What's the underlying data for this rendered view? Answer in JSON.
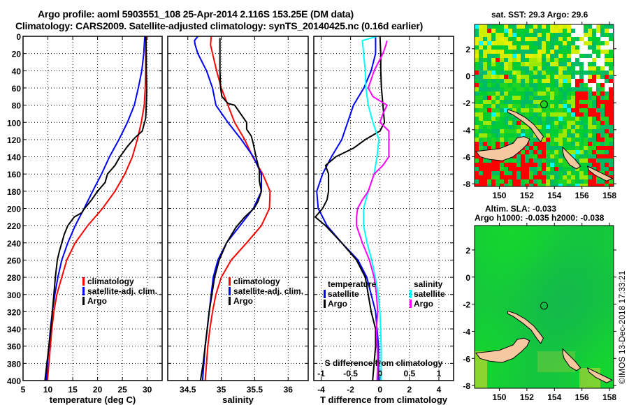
{
  "titles": {
    "line1": "Argo profile: aoml 5903551_108 25-Apr-2014 2.116S 153.25E (DM data)",
    "line2": "Climatology: CARS2009. Satellite-adjusted climatology: synTS_20140425.nc (0.16d earlier)"
  },
  "credit": "©IMOS 13-Dec-2018 17:33:21",
  "chart_data": [
    {
      "type": "line",
      "id": "temperature",
      "xlabel": "temperature (deg C)",
      "ylabel": "depth",
      "xlim": [
        5,
        33
      ],
      "ylim": [
        400,
        0
      ],
      "xticks": [
        5,
        10,
        15,
        20,
        25,
        30
      ],
      "yticks": [
        0,
        20,
        40,
        60,
        80,
        100,
        120,
        140,
        160,
        180,
        200,
        220,
        240,
        260,
        280,
        300,
        320,
        340,
        360,
        380,
        400
      ],
      "grid": true,
      "legend": {
        "placement": "lower-right",
        "entries": [
          "climatology",
          "satellite-adj. clim.",
          "Argo"
        ]
      },
      "series": [
        {
          "name": "climatology",
          "color": "#ff0000",
          "depth": [
            0,
            20,
            40,
            60,
            80,
            100,
            120,
            140,
            160,
            180,
            200,
            220,
            240,
            260,
            280,
            300,
            320,
            340,
            360,
            380,
            400
          ],
          "values": [
            29.8,
            29.7,
            29.7,
            29.6,
            29.4,
            28.8,
            28.0,
            27.0,
            25.5,
            23.5,
            21.0,
            18.0,
            15.5,
            13.8,
            12.8,
            11.8,
            11.2,
            10.8,
            10.5,
            10.2,
            9.9
          ]
        },
        {
          "name": "satellite-adj. clim.",
          "color": "#0000ff",
          "depth": [
            0,
            20,
            40,
            60,
            80,
            100,
            120,
            140,
            160,
            180,
            200,
            220,
            240,
            260,
            280,
            300,
            320,
            340,
            360,
            380,
            400
          ],
          "values": [
            29.5,
            29.3,
            28.9,
            28.2,
            27.4,
            26.0,
            24.3,
            22.4,
            20.8,
            19.0,
            17.3,
            15.5,
            14.0,
            12.8,
            12.0,
            11.4,
            10.9,
            10.5,
            10.2,
            9.9,
            9.7
          ]
        },
        {
          "name": "Argo",
          "color": "#000000",
          "depth": [
            0,
            20,
            40,
            60,
            80,
            95,
            110,
            118,
            128,
            140,
            150,
            160,
            170,
            180,
            190,
            200,
            205,
            210,
            220,
            230,
            240,
            250,
            260,
            280,
            300,
            320,
            340,
            360,
            380,
            400
          ],
          "values": [
            29.7,
            29.8,
            29.8,
            29.9,
            29.8,
            29.7,
            29.0,
            27.5,
            26.0,
            24.5,
            23.5,
            22.0,
            21.5,
            20.0,
            18.8,
            17.4,
            16.8,
            15.3,
            14.0,
            13.3,
            12.8,
            12.3,
            11.9,
            11.5,
            11.2,
            10.9,
            10.6,
            10.2,
            9.8,
            9.4
          ]
        }
      ]
    },
    {
      "type": "line",
      "id": "salinity",
      "xlabel": "salinity",
      "xlim": [
        34.2,
        36.3
      ],
      "ylim": [
        400,
        0
      ],
      "xticks": [
        34.5,
        35,
        35.5,
        36
      ],
      "yticks": [
        0,
        20,
        40,
        60,
        80,
        100,
        120,
        140,
        160,
        180,
        200,
        220,
        240,
        260,
        280,
        300,
        320,
        340,
        360,
        380,
        400
      ],
      "grid": true,
      "legend": {
        "placement": "lower-right",
        "entries": [
          "climatology",
          "satellite-adj. clim.",
          "Argo"
        ]
      },
      "series": [
        {
          "name": "climatology",
          "color": "#ff0000",
          "depth": [
            0,
            10,
            20,
            40,
            60,
            80,
            100,
            120,
            140,
            160,
            180,
            200,
            220,
            240,
            260,
            280,
            300,
            320,
            340,
            360,
            380,
            400
          ],
          "values": [
            34.85,
            34.84,
            34.87,
            34.93,
            35.0,
            35.1,
            35.2,
            35.35,
            35.47,
            35.62,
            35.73,
            35.72,
            35.6,
            35.38,
            35.15,
            35.0,
            34.92,
            34.87,
            34.83,
            34.8,
            34.78,
            34.76
          ]
        },
        {
          "name": "satellite-adj. clim.",
          "color": "#0000ff",
          "depth": [
            0,
            5,
            10,
            20,
            40,
            60,
            80,
            100,
            120,
            140,
            160,
            180,
            200,
            220,
            240,
            260,
            280,
            300,
            320,
            340,
            360,
            380,
            400
          ],
          "values": [
            34.65,
            34.6,
            34.61,
            34.65,
            34.78,
            34.87,
            34.92,
            35.1,
            35.3,
            35.48,
            35.6,
            35.6,
            35.48,
            35.28,
            35.08,
            34.95,
            34.88,
            34.85,
            34.82,
            34.79,
            34.76,
            34.74,
            34.72
          ]
        },
        {
          "name": "Argo",
          "color": "#000000",
          "depth": [
            2,
            20,
            40,
            60,
            70,
            78,
            80,
            100,
            108,
            116,
            125,
            140,
            156,
            168,
            180,
            192,
            200,
            210,
            222,
            240,
            260,
            280,
            300,
            320,
            340,
            360,
            380,
            400
          ],
          "values": [
            34.98,
            34.98,
            34.98,
            34.99,
            35.01,
            35.1,
            35.2,
            35.38,
            35.38,
            35.45,
            35.48,
            35.52,
            35.57,
            35.57,
            35.6,
            35.55,
            35.49,
            35.35,
            35.22,
            35.08,
            34.97,
            34.9,
            34.86,
            34.82,
            34.79,
            34.76,
            34.73,
            34.69
          ]
        }
      ]
    },
    {
      "type": "line",
      "id": "differences",
      "xlabel": "T difference from climatology",
      "xlabel_top": "S difference from climatology",
      "xlim": [
        -4.5,
        5
      ],
      "xlim_top": [
        -1.125,
        1.25
      ],
      "ylim": [
        400,
        0
      ],
      "xticks": [
        -4,
        -2,
        0,
        2,
        4
      ],
      "xticks_top": [
        -1,
        -0.5,
        0,
        0.5,
        1
      ],
      "xticklabels_top": [
        "-1",
        "-0.5",
        "0",
        "0.5",
        "1"
      ],
      "yticks": [
        0,
        20,
        40,
        60,
        80,
        100,
        120,
        140,
        160,
        180,
        200,
        220,
        240,
        260,
        280,
        300,
        320,
        340,
        360,
        380,
        400
      ],
      "grid": true,
      "legend": [
        {
          "placement": "lower-left",
          "heading": "temperature",
          "entries": [
            "satellite",
            "Argo"
          ]
        },
        {
          "placement": "lower-right",
          "heading": "salinity",
          "entries": [
            "satellite",
            "Argo"
          ]
        }
      ],
      "series": [
        {
          "name": "temperature satellite",
          "color": "#0000ff",
          "axis": "T",
          "depth": [
            0,
            20,
            40,
            60,
            80,
            100,
            120,
            140,
            160,
            180,
            200,
            220,
            240,
            260,
            280,
            300,
            320,
            340,
            360,
            380,
            400
          ],
          "values": [
            -0.3,
            -0.3,
            -0.6,
            -1.1,
            -1.8,
            -2.2,
            -2.6,
            -3.3,
            -3.9,
            -4.3,
            -4.2,
            -3.6,
            -2.6,
            -1.5,
            -0.9,
            -0.6,
            -0.3,
            -0.2,
            -0.1,
            -0.1,
            -0.1
          ]
        },
        {
          "name": "temperature Argo",
          "color": "#000000",
          "axis": "T",
          "depth": [
            0,
            20,
            40,
            60,
            80,
            100,
            110,
            120,
            130,
            140,
            150,
            160,
            170,
            180,
            190,
            200,
            210,
            220,
            240,
            260,
            280,
            300,
            320,
            340,
            360,
            380,
            400
          ],
          "values": [
            0,
            0.05,
            0.05,
            0.1,
            0.2,
            0.3,
            0.0,
            -1.0,
            -1.8,
            -3.0,
            -3.7,
            -3.5,
            -3.5,
            -3.5,
            -3.6,
            -3.9,
            -4.4,
            -3.7,
            -2.6,
            -1.6,
            -1.0,
            -0.8,
            -0.6,
            -0.3,
            -0.3,
            -0.4,
            -0.5
          ]
        },
        {
          "name": "salinity satellite",
          "color": "#00ffff",
          "axis": "S",
          "depth": [
            0,
            5,
            20,
            40,
            60,
            80,
            100,
            120,
            140,
            160,
            180,
            200,
            220,
            240,
            260,
            280,
            300,
            320,
            340,
            360,
            380,
            400
          ],
          "values": [
            -0.05,
            -0.3,
            -0.28,
            -0.25,
            -0.24,
            -0.2,
            -0.12,
            -0.02,
            -0.05,
            -0.1,
            -0.2,
            -0.28,
            -0.28,
            -0.22,
            -0.14,
            -0.08,
            -0.03,
            0,
            0.01,
            0.02,
            0.02,
            0.02
          ]
        },
        {
          "name": "salinity Argo",
          "color": "#ff00ff",
          "axis": "S",
          "depth": [
            5,
            10,
            20,
            40,
            60,
            70,
            80,
            90,
            100,
            110,
            120,
            130,
            140,
            150,
            160,
            170,
            180,
            190,
            200,
            210,
            220,
            240,
            260,
            280,
            300,
            320,
            340,
            360,
            380,
            400
          ],
          "values": [
            0.12,
            0.1,
            0.05,
            -0.1,
            -0.2,
            -0.12,
            0.12,
            0.05,
            0.0,
            0.15,
            0.15,
            0.15,
            0.15,
            0.05,
            -0.1,
            -0.15,
            -0.2,
            -0.3,
            -0.38,
            -0.4,
            -0.4,
            -0.3,
            -0.18,
            -0.1,
            -0.06,
            -0.04,
            -0.06,
            -0.05,
            -0.04,
            -0.05
          ]
        }
      ]
    },
    {
      "type": "heatmap",
      "id": "sst-map",
      "title": "sat. SST: 29.3 Argo: 29.6",
      "xlim": [
        148.2,
        158.3
      ],
      "ylim": [
        -8.2,
        3.8
      ],
      "xticks": [
        150,
        152,
        154,
        156,
        158
      ],
      "yticks": [
        -8,
        -6,
        -4,
        -2,
        0,
        2
      ],
      "marker": {
        "lon": 153.25,
        "lat": -2.116
      }
    },
    {
      "type": "heatmap",
      "id": "sla-map",
      "title_line1": "Altim. SLA: -0.033",
      "title_line2": "Argo h1000: -0.035 h2000: -0.038",
      "xlim": [
        148.2,
        158.3
      ],
      "ylim": [
        -8.2,
        3.8
      ],
      "xticks": [
        150,
        152,
        154,
        156,
        158
      ],
      "yticks": [
        -8,
        -6,
        -4,
        -2,
        0,
        2
      ],
      "marker": {
        "lon": 153.25,
        "lat": -2.116
      }
    }
  ]
}
